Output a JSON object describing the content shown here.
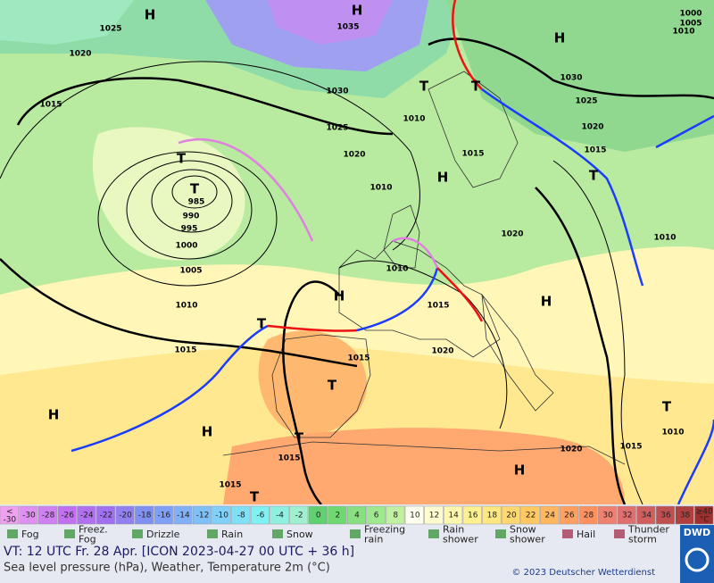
{
  "map": {
    "labels": [
      "H",
      "H",
      "T",
      "985",
      "990",
      "995",
      "1000",
      "1005",
      "1010",
      "1015",
      "1020",
      "1025",
      "1030",
      "1035",
      "1025",
      "1020",
      "1010",
      "1015",
      "1010",
      "1010",
      "1015",
      "1015",
      "1015",
      "1020",
      "1020",
      "1025",
      "1030",
      "1020",
      "1015",
      "1010",
      "1015",
      "1010",
      "1020",
      "1015",
      "1015",
      "1000",
      "1005",
      "1010",
      "H",
      "H",
      "H",
      "H",
      "H",
      "H",
      "H",
      "T",
      "T",
      "T",
      "T",
      "T",
      "T",
      "T",
      "T",
      "T"
    ]
  },
  "scale": [
    {
      "label": "<\n-30",
      "color": "#f0a0f0"
    },
    {
      "label": "-30",
      "color": "#e090f0"
    },
    {
      "label": "-28",
      "color": "#d080f0"
    },
    {
      "label": "-26",
      "color": "#c070f0"
    },
    {
      "label": "-24",
      "color": "#b070f0"
    },
    {
      "label": "-22",
      "color": "#a070f0"
    },
    {
      "label": "-20",
      "color": "#9080f0"
    },
    {
      "label": "-18",
      "color": "#8090f0"
    },
    {
      "label": "-16",
      "color": "#80a0f8"
    },
    {
      "label": "-14",
      "color": "#80b0f8"
    },
    {
      "label": "-12",
      "color": "#80c0f8"
    },
    {
      "label": "-10",
      "color": "#80d0f8"
    },
    {
      "label": "-8",
      "color": "#80e0f8"
    },
    {
      "label": "-6",
      "color": "#80f0f0"
    },
    {
      "label": "-4",
      "color": "#90f0e0"
    },
    {
      "label": "-2",
      "color": "#a0f0d0"
    },
    {
      "label": "0",
      "color": "#60d070"
    },
    {
      "label": "2",
      "color": "#70d870"
    },
    {
      "label": "4",
      "color": "#88e080"
    },
    {
      "label": "6",
      "color": "#a0e890"
    },
    {
      "label": "8",
      "color": "#c0f0a0"
    },
    {
      "label": "10",
      "color": "#fffff0"
    },
    {
      "label": "12",
      "color": "#fffcd0"
    },
    {
      "label": "14",
      "color": "#fff8b0"
    },
    {
      "label": "16",
      "color": "#fff090"
    },
    {
      "label": "18",
      "color": "#ffe880"
    },
    {
      "label": "20",
      "color": "#ffd870"
    },
    {
      "label": "22",
      "color": "#ffc860"
    },
    {
      "label": "24",
      "color": "#ffb860"
    },
    {
      "label": "26",
      "color": "#ffa060"
    },
    {
      "label": "28",
      "color": "#ff9060"
    },
    {
      "label": "30",
      "color": "#f08070"
    },
    {
      "label": "32",
      "color": "#e07070"
    },
    {
      "label": "34",
      "color": "#d06060"
    },
    {
      "label": "36",
      "color": "#c05050"
    },
    {
      "label": "38",
      "color": "#b04040"
    },
    {
      "label": "≥40\n°C",
      "color": "#a03030"
    }
  ],
  "legend": [
    "Fog",
    "Freez.\nFog",
    "Drizzle",
    "Rain",
    "Snow",
    "Freezing\nrain",
    "Rain\nshower",
    "Snow\nshower",
    "Hail",
    "Thunder\nstorm"
  ],
  "footer": {
    "valid": "VT: 12 UTC Fr.  28 Apr. [ICON 2023-04-27  00 UTC + 36 h]",
    "subtitle": "Sea level pressure (hPa), Weather, Temperature 2m (°C)",
    "copyright": "© 2023 Deutscher Wetterdienst",
    "logo": "DWD"
  }
}
